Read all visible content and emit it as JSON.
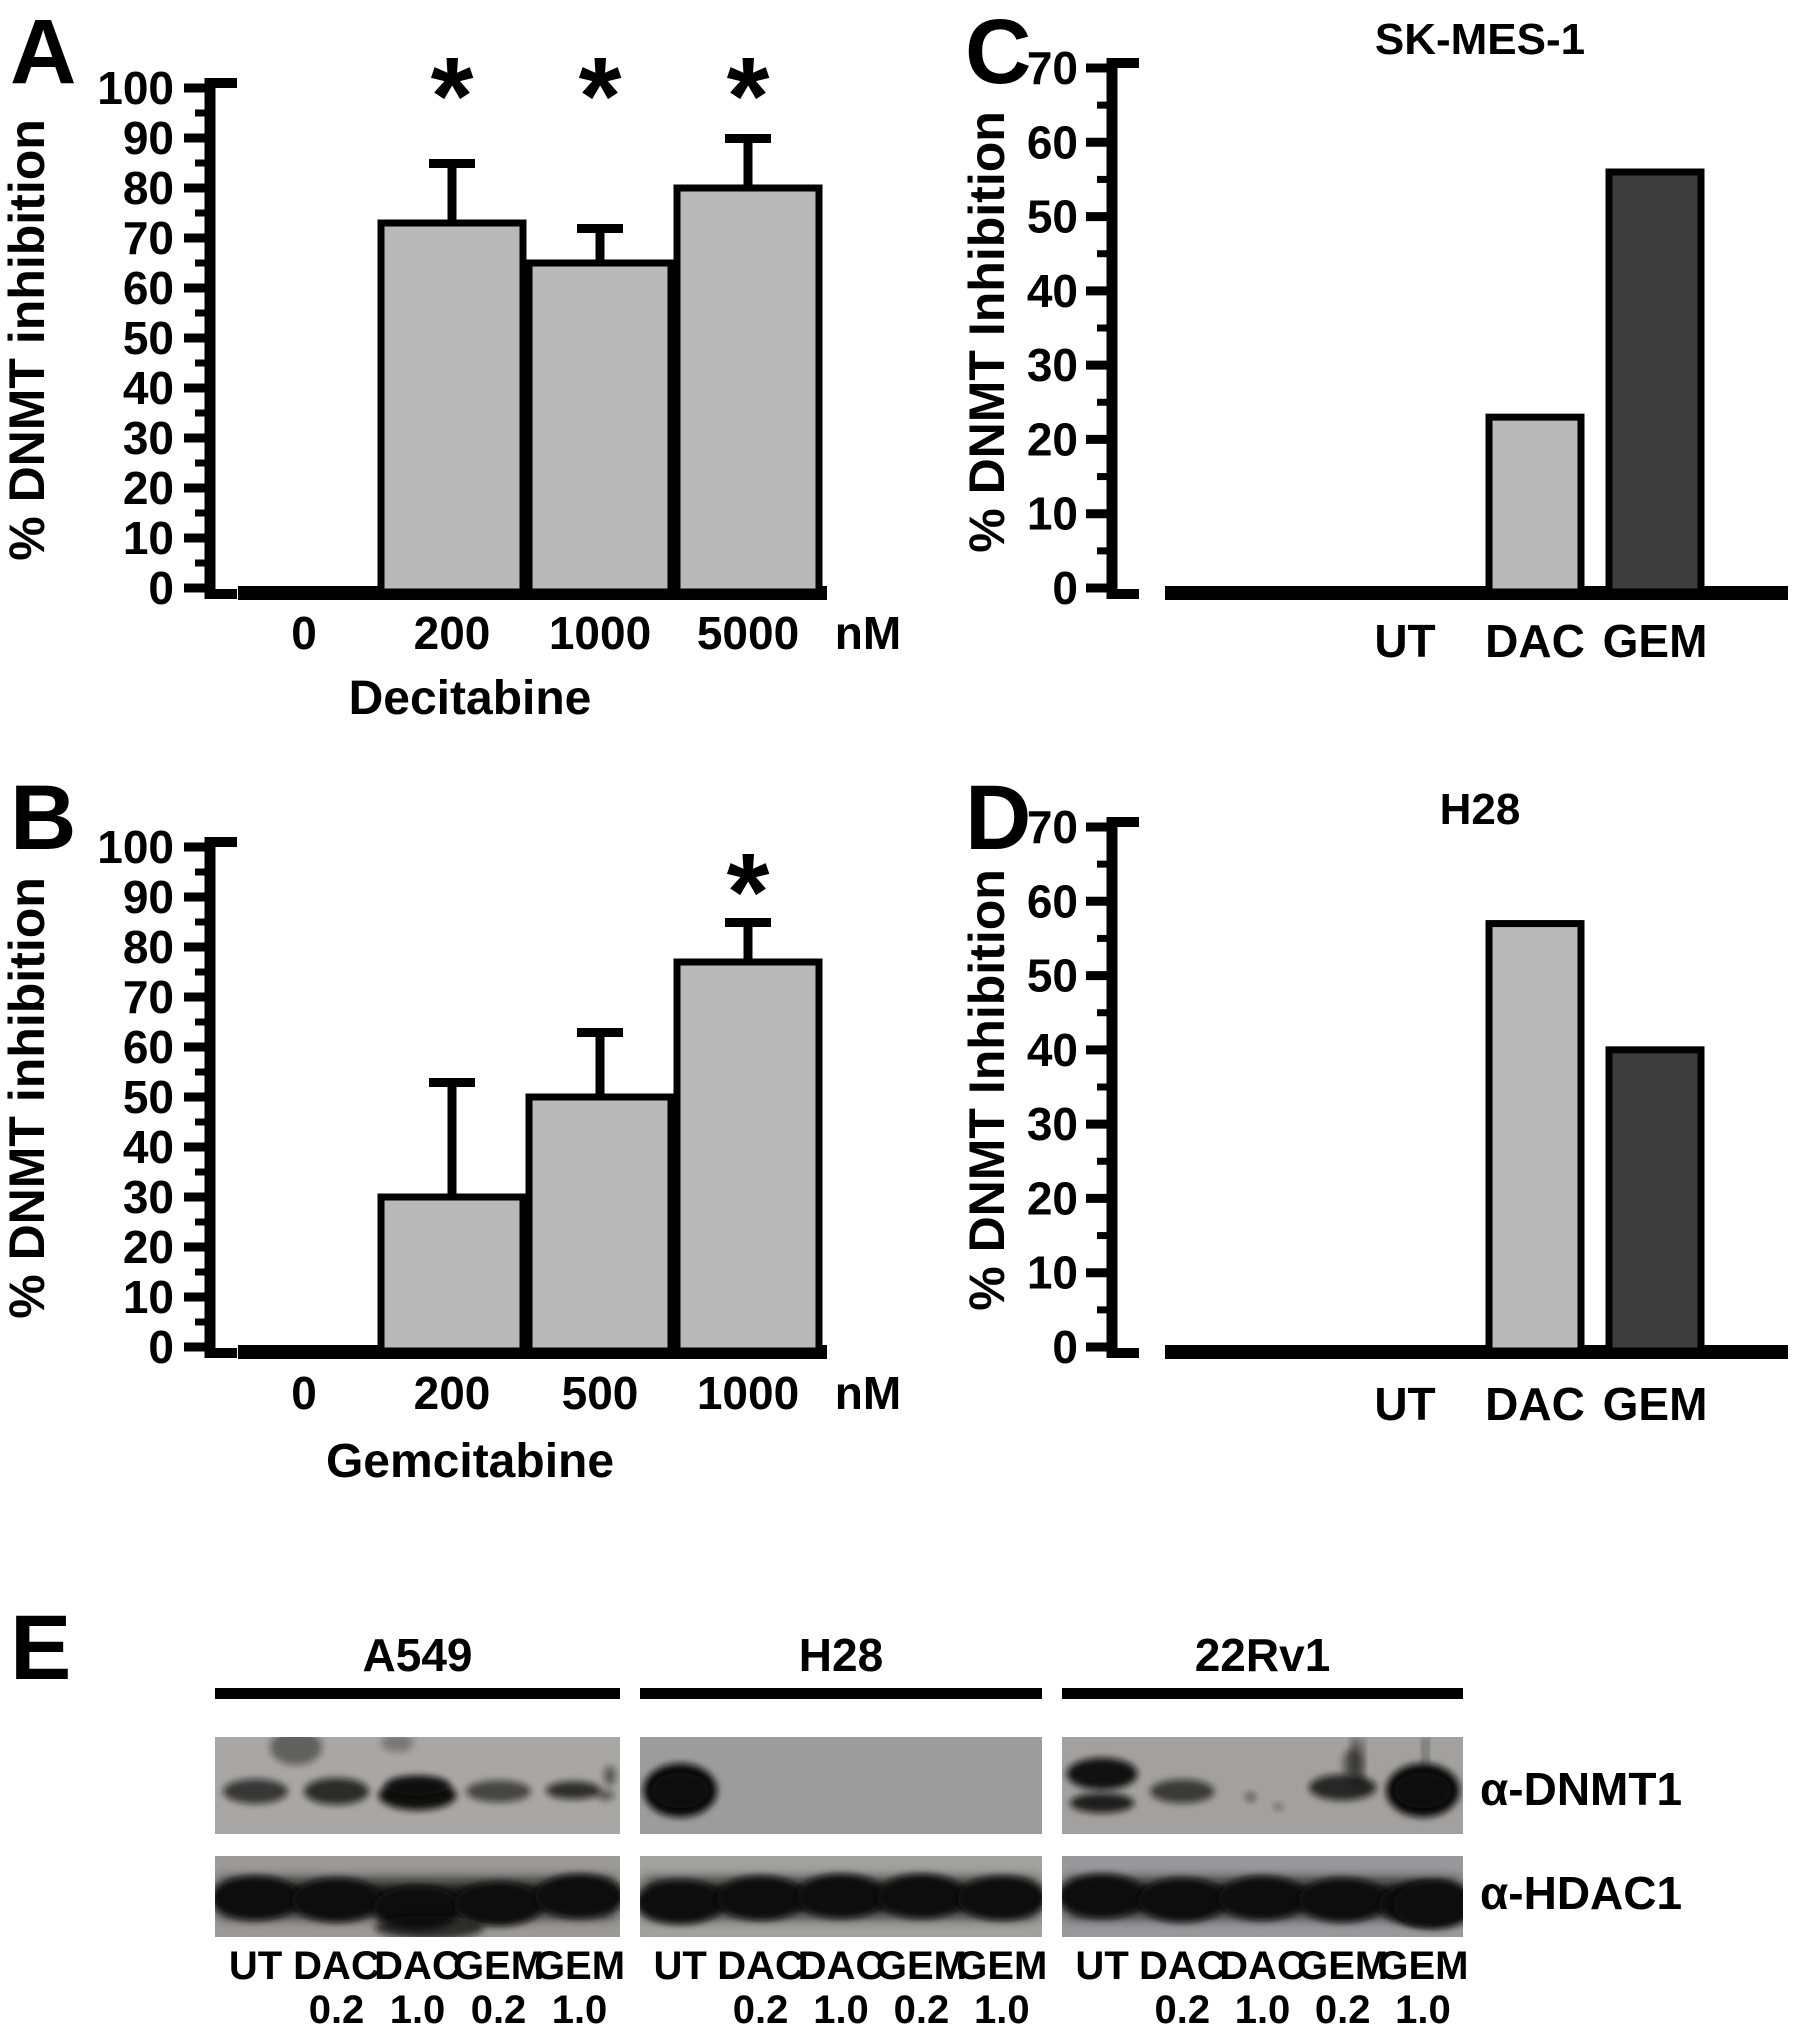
{
  "figure": {
    "panels": {
      "a": "A",
      "b": "B",
      "c": "C",
      "d": "D",
      "e": "E"
    },
    "significance_marker": "*"
  },
  "chart_data": [
    {
      "panel": "A",
      "type": "bar",
      "title": "",
      "xlabel": "Decitabine",
      "ylabel": "% DNMT inhibition",
      "unit": "nM",
      "categories": [
        "0",
        "200",
        "1000",
        "5000"
      ],
      "values": [
        0,
        73,
        65,
        80
      ],
      "error_upper_to": [
        null,
        85,
        72,
        90
      ],
      "significant": [
        false,
        true,
        true,
        true
      ],
      "ylim": [
        0,
        100
      ],
      "ytick_major": 10,
      "ytick_minor": 5,
      "grid": false,
      "legend": null,
      "bar_colors": [
        "#b9b9b9",
        "#b9b9b9",
        "#b9b9b9",
        "#b9b9b9"
      ]
    },
    {
      "panel": "B",
      "type": "bar",
      "title": "",
      "xlabel": "Gemcitabine",
      "ylabel": "% DNMT inhibition",
      "unit": "nM",
      "categories": [
        "0",
        "200",
        "500",
        "1000"
      ],
      "values": [
        0,
        30,
        50,
        77
      ],
      "error_upper_to": [
        null,
        53,
        63,
        85
      ],
      "significant": [
        false,
        false,
        false,
        true
      ],
      "ylim": [
        0,
        100
      ],
      "ytick_major": 10,
      "ytick_minor": 5,
      "grid": false,
      "legend": null,
      "bar_colors": [
        "#b9b9b9",
        "#b9b9b9",
        "#b9b9b9",
        "#b9b9b9"
      ]
    },
    {
      "panel": "C",
      "type": "bar",
      "title": "SK-MES-1",
      "xlabel": "",
      "ylabel": "% DNMT Inhibition",
      "unit": "",
      "categories": [
        "UT",
        "DAC",
        "GEM"
      ],
      "values": [
        0,
        23,
        56
      ],
      "error_upper_to": [
        null,
        null,
        null
      ],
      "significant": [
        false,
        false,
        false
      ],
      "ylim": [
        0,
        70
      ],
      "ytick_major": 10,
      "ytick_minor": 5,
      "grid": false,
      "legend": null,
      "bar_colors": [
        "#b9b9b9",
        "#b9b9b9",
        "#3d3d3d"
      ]
    },
    {
      "panel": "D",
      "type": "bar",
      "title": "H28",
      "xlabel": "",
      "ylabel": "% DNMT Inhibition",
      "unit": "",
      "categories": [
        "UT",
        "DAC",
        "GEM"
      ],
      "values": [
        0,
        57,
        40
      ],
      "error_upper_to": [
        null,
        null,
        null
      ],
      "significant": [
        false,
        false,
        false
      ],
      "ylim": [
        0,
        70
      ],
      "ytick_major": 10,
      "ytick_minor": 5,
      "grid": false,
      "legend": null,
      "bar_colors": [
        "#b9b9b9",
        "#b9b9b9",
        "#3d3d3d"
      ]
    }
  ],
  "panel_e": {
    "label": "E",
    "row_labels": [
      "α-DNMT1",
      "α-HDAC1"
    ],
    "lane_labels": [
      "UT",
      "DAC",
      "DAC",
      "GEM",
      "GEM"
    ],
    "lane_doses": [
      "",
      "0.2",
      "1.0",
      "0.2",
      "1.0"
    ],
    "groups": [
      {
        "title": "A549",
        "dnmt1_intensity": [
          0.6,
          0.72,
          1.0,
          0.45,
          0.4
        ],
        "dnmt1_shape": [
          "band",
          "band",
          "thick",
          "band",
          "taper"
        ],
        "hdac1_intensity": [
          1,
          1,
          1,
          1,
          1
        ]
      },
      {
        "title": "H28",
        "dnmt1_intensity": [
          1.0,
          0,
          0,
          0,
          0
        ],
        "dnmt1_shape": [
          "blob",
          "none",
          "none",
          "none",
          "none"
        ],
        "hdac1_intensity": [
          1,
          1,
          1,
          1,
          1
        ]
      },
      {
        "title": "22Rv1",
        "dnmt1_intensity": [
          0.95,
          0.55,
          0.06,
          0.5,
          0.82
        ],
        "dnmt1_shape": [
          "double",
          "band",
          "trace",
          "smear",
          "blob"
        ],
        "hdac1_intensity": [
          1,
          1,
          1,
          1,
          1
        ]
      }
    ]
  }
}
